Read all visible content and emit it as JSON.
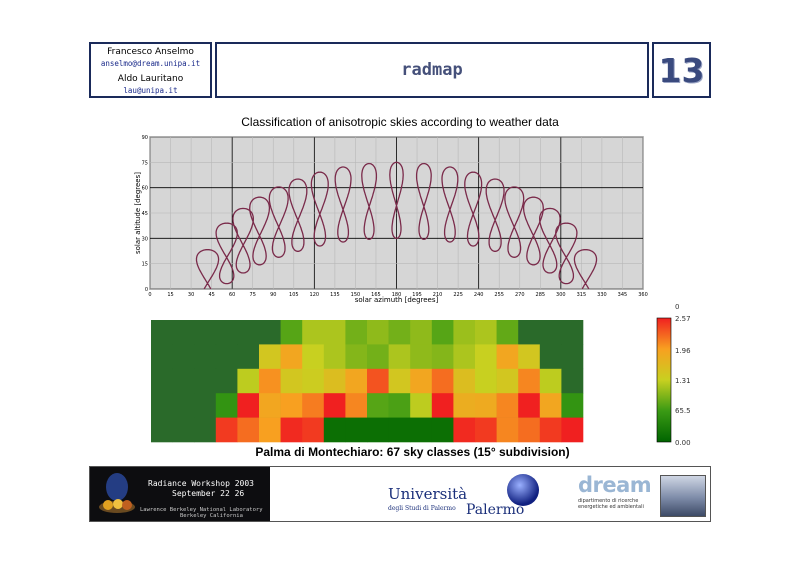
{
  "header": {
    "author1_name": "Francesco Anselmo",
    "author1_email": "anselmo@dream.unipa.it",
    "author2_name": "Aldo Lauritano",
    "author2_email": "lau@unipa.it",
    "title": "radmap",
    "page_number": "13"
  },
  "chart_data": [
    {
      "type": "line",
      "title": "Classification of anisotropic skies according to weather data",
      "xlabel": "solar azimuth [degrees]",
      "ylabel": "solar altitude [degrees]",
      "xlim": [
        0,
        360
      ],
      "ylim": [
        0,
        90
      ],
      "x_ticks": [
        0,
        15,
        30,
        45,
        60,
        75,
        90,
        105,
        120,
        135,
        150,
        165,
        180,
        195,
        210,
        225,
        240,
        255,
        270,
        285,
        300,
        315,
        330,
        345,
        360
      ],
      "y_ticks": [
        0,
        15,
        30,
        45,
        60,
        75,
        90
      ],
      "grid": true,
      "grid_major_x_step": 60,
      "grid_major_y_step": 30,
      "series_color": "#7a2a4a",
      "curve": "analemma loops (sun path per hour of day over the year)",
      "loop_centers_azimuth": [
        42,
        56,
        68,
        80,
        94,
        108,
        124,
        141,
        160,
        180,
        200,
        219,
        236,
        252,
        266,
        280,
        292,
        304,
        318
      ],
      "sun_path_apex_altitude_summer": 75,
      "sun_path_apex_altitude_winter": 30
    },
    {
      "type": "heatmap",
      "title": "Palma di Montechiaro: 67 sky classes (15° subdivision)",
      "rows": 5,
      "cols": 20,
      "colorscale": [
        {
          "v": 0,
          "color": "#006400"
        },
        {
          "v": 0.25,
          "color": "#3a9a14"
        },
        {
          "v": 0.5,
          "color": "#c8d020"
        },
        {
          "v": 0.75,
          "color": "#f8a020"
        },
        {
          "v": 1,
          "color": "#f02020"
        }
      ],
      "colorbar_labels": [
        "0",
        "2.57",
        "1.96",
        "1.31",
        "65.5",
        "0.00"
      ],
      "background_color": "#2a6a2a",
      "values": [
        [
          0,
          0,
          0,
          0,
          0,
          0,
          0.3,
          0.45,
          0.45,
          0.35,
          0.4,
          0.35,
          0.4,
          0.3,
          0.42,
          0.45,
          0.32,
          0,
          0,
          0
        ],
        [
          0,
          0,
          0,
          0,
          0,
          0.55,
          0.72,
          0.5,
          0.45,
          0.38,
          0.35,
          0.45,
          0.4,
          0.38,
          0.45,
          0.5,
          0.72,
          0.55,
          0,
          0
        ],
        [
          0,
          0,
          0,
          0,
          0.48,
          0.78,
          0.55,
          0.52,
          0.6,
          0.72,
          0.9,
          0.55,
          0.72,
          0.85,
          0.6,
          0.5,
          0.55,
          0.8,
          0.48,
          0
        ],
        [
          0,
          0,
          0,
          0.22,
          1,
          0.72,
          0.75,
          0.82,
          1,
          0.8,
          0.3,
          0.28,
          0.48,
          1,
          0.68,
          0.7,
          0.8,
          1,
          0.72,
          0.22
        ],
        [
          0,
          0,
          0,
          0.95,
          0.85,
          0.75,
          0.98,
          0.95,
          0.05,
          0.05,
          0.05,
          0.05,
          0.05,
          0.05,
          0.98,
          0.95,
          0.8,
          0.85,
          0.95,
          1
        ]
      ]
    }
  ],
  "footer": {
    "banner_title_1": "Radiance Workshop 2003",
    "banner_title_2": "September 22 26",
    "banner_sub_1": "Lawrence Berkeley National Laboratory",
    "banner_sub_2": "Berkeley California",
    "unipa_1": "Università",
    "unipa_2": "degli Studi di Palermo",
    "unipa_3": "Palermo",
    "dream_word": "dream",
    "dream_sub_1": "dipartimento di ricerche",
    "dream_sub_2": "energetiche ed ambientali"
  }
}
